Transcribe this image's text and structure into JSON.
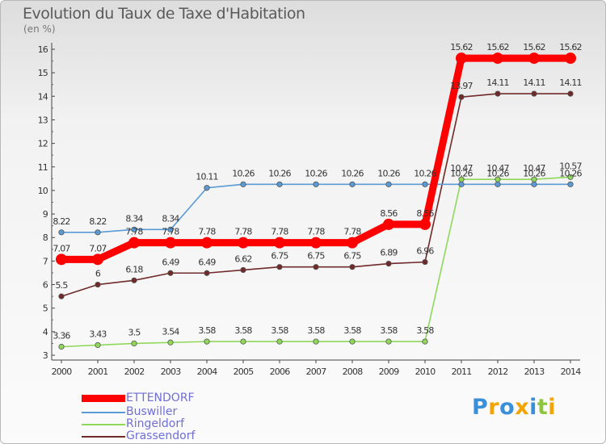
{
  "chart_data": {
    "type": "line",
    "title": "Evolution du Taux de Taxe d'Habitation",
    "ylabel": "(en %)",
    "xlabel": "",
    "x": [
      "2000",
      "2001",
      "2002",
      "2003",
      "2004",
      "2005",
      "2006",
      "2007",
      "2008",
      "2009",
      "2010",
      "2011",
      "2012",
      "2013",
      "2014"
    ],
    "ylim": [
      3,
      16
    ],
    "yticks": [
      "3",
      "4",
      "5",
      "6",
      "7",
      "8",
      "9",
      "10",
      "11",
      "12",
      "13",
      "14",
      "15",
      "16"
    ],
    "series": [
      {
        "name": "ETTENDORF",
        "color": "#ff0000",
        "values": [
          7.07,
          7.07,
          7.78,
          7.78,
          7.78,
          7.78,
          7.78,
          7.78,
          7.78,
          8.56,
          8.56,
          15.62,
          15.62,
          15.62,
          15.62
        ],
        "labels": [
          "7.07",
          "7.07",
          "7.78",
          "7.78",
          "7.78",
          "7.78",
          "7.78",
          "7.78",
          "7.78",
          "8.56",
          "8.56",
          "15.62",
          "15.62",
          "15.62",
          "15.62"
        ]
      },
      {
        "name": "Buswiller",
        "color": "#5b9bd5",
        "values": [
          8.22,
          8.22,
          8.34,
          8.34,
          10.11,
          10.26,
          10.26,
          10.26,
          10.26,
          10.26,
          10.26,
          10.26,
          10.26,
          10.26,
          10.26
        ],
        "labels": [
          "8.22",
          "8.22",
          "8.34",
          "8.34",
          "10.11",
          "10.26",
          "10.26",
          "10.26",
          "10.26",
          "10.26",
          "10.26",
          "10.26",
          "10.26",
          "10.26",
          "10.26"
        ]
      },
      {
        "name": "Ringeldorf",
        "color": "#8fd85a",
        "values": [
          3.36,
          3.43,
          3.5,
          3.54,
          3.58,
          3.58,
          3.58,
          3.58,
          3.58,
          3.58,
          3.58,
          10.47,
          10.47,
          10.47,
          10.57
        ],
        "labels": [
          "3.36",
          "3.43",
          "3.5",
          "3.54",
          "3.58",
          "3.58",
          "3.58",
          "3.58",
          "3.58",
          "3.58",
          "3.58",
          "10.47",
          "10.47",
          "10.47",
          "10.57"
        ]
      },
      {
        "name": "Grassendorf",
        "color": "#702a2a",
        "values": [
          5.5,
          6,
          6.18,
          6.49,
          6.49,
          6.62,
          6.75,
          6.75,
          6.75,
          6.89,
          6.96,
          13.97,
          14.11,
          14.11,
          14.11
        ],
        "labels": [
          "5.5",
          "6",
          "6.18",
          "6.49",
          "6.49",
          "6.62",
          "6.75",
          "6.75",
          "6.75",
          "6.89",
          "6.96",
          "13.97",
          "14.11",
          "14.11",
          "14.11"
        ]
      }
    ],
    "legend": "bottom-left",
    "grid": false
  },
  "brand": {
    "text": "Proxiti",
    "letters": [
      {
        "ch": "P",
        "color": "#3a8fd9"
      },
      {
        "ch": "r",
        "color": "#f2a400"
      },
      {
        "ch": "o",
        "color": "#3a8fd9"
      },
      {
        "ch": "x",
        "color": "#f2a400"
      },
      {
        "ch": "i",
        "color": "#3a8fd9"
      },
      {
        "ch": "t",
        "color": "#8fc63f"
      },
      {
        "ch": "i",
        "color": "#f2a400"
      }
    ]
  }
}
